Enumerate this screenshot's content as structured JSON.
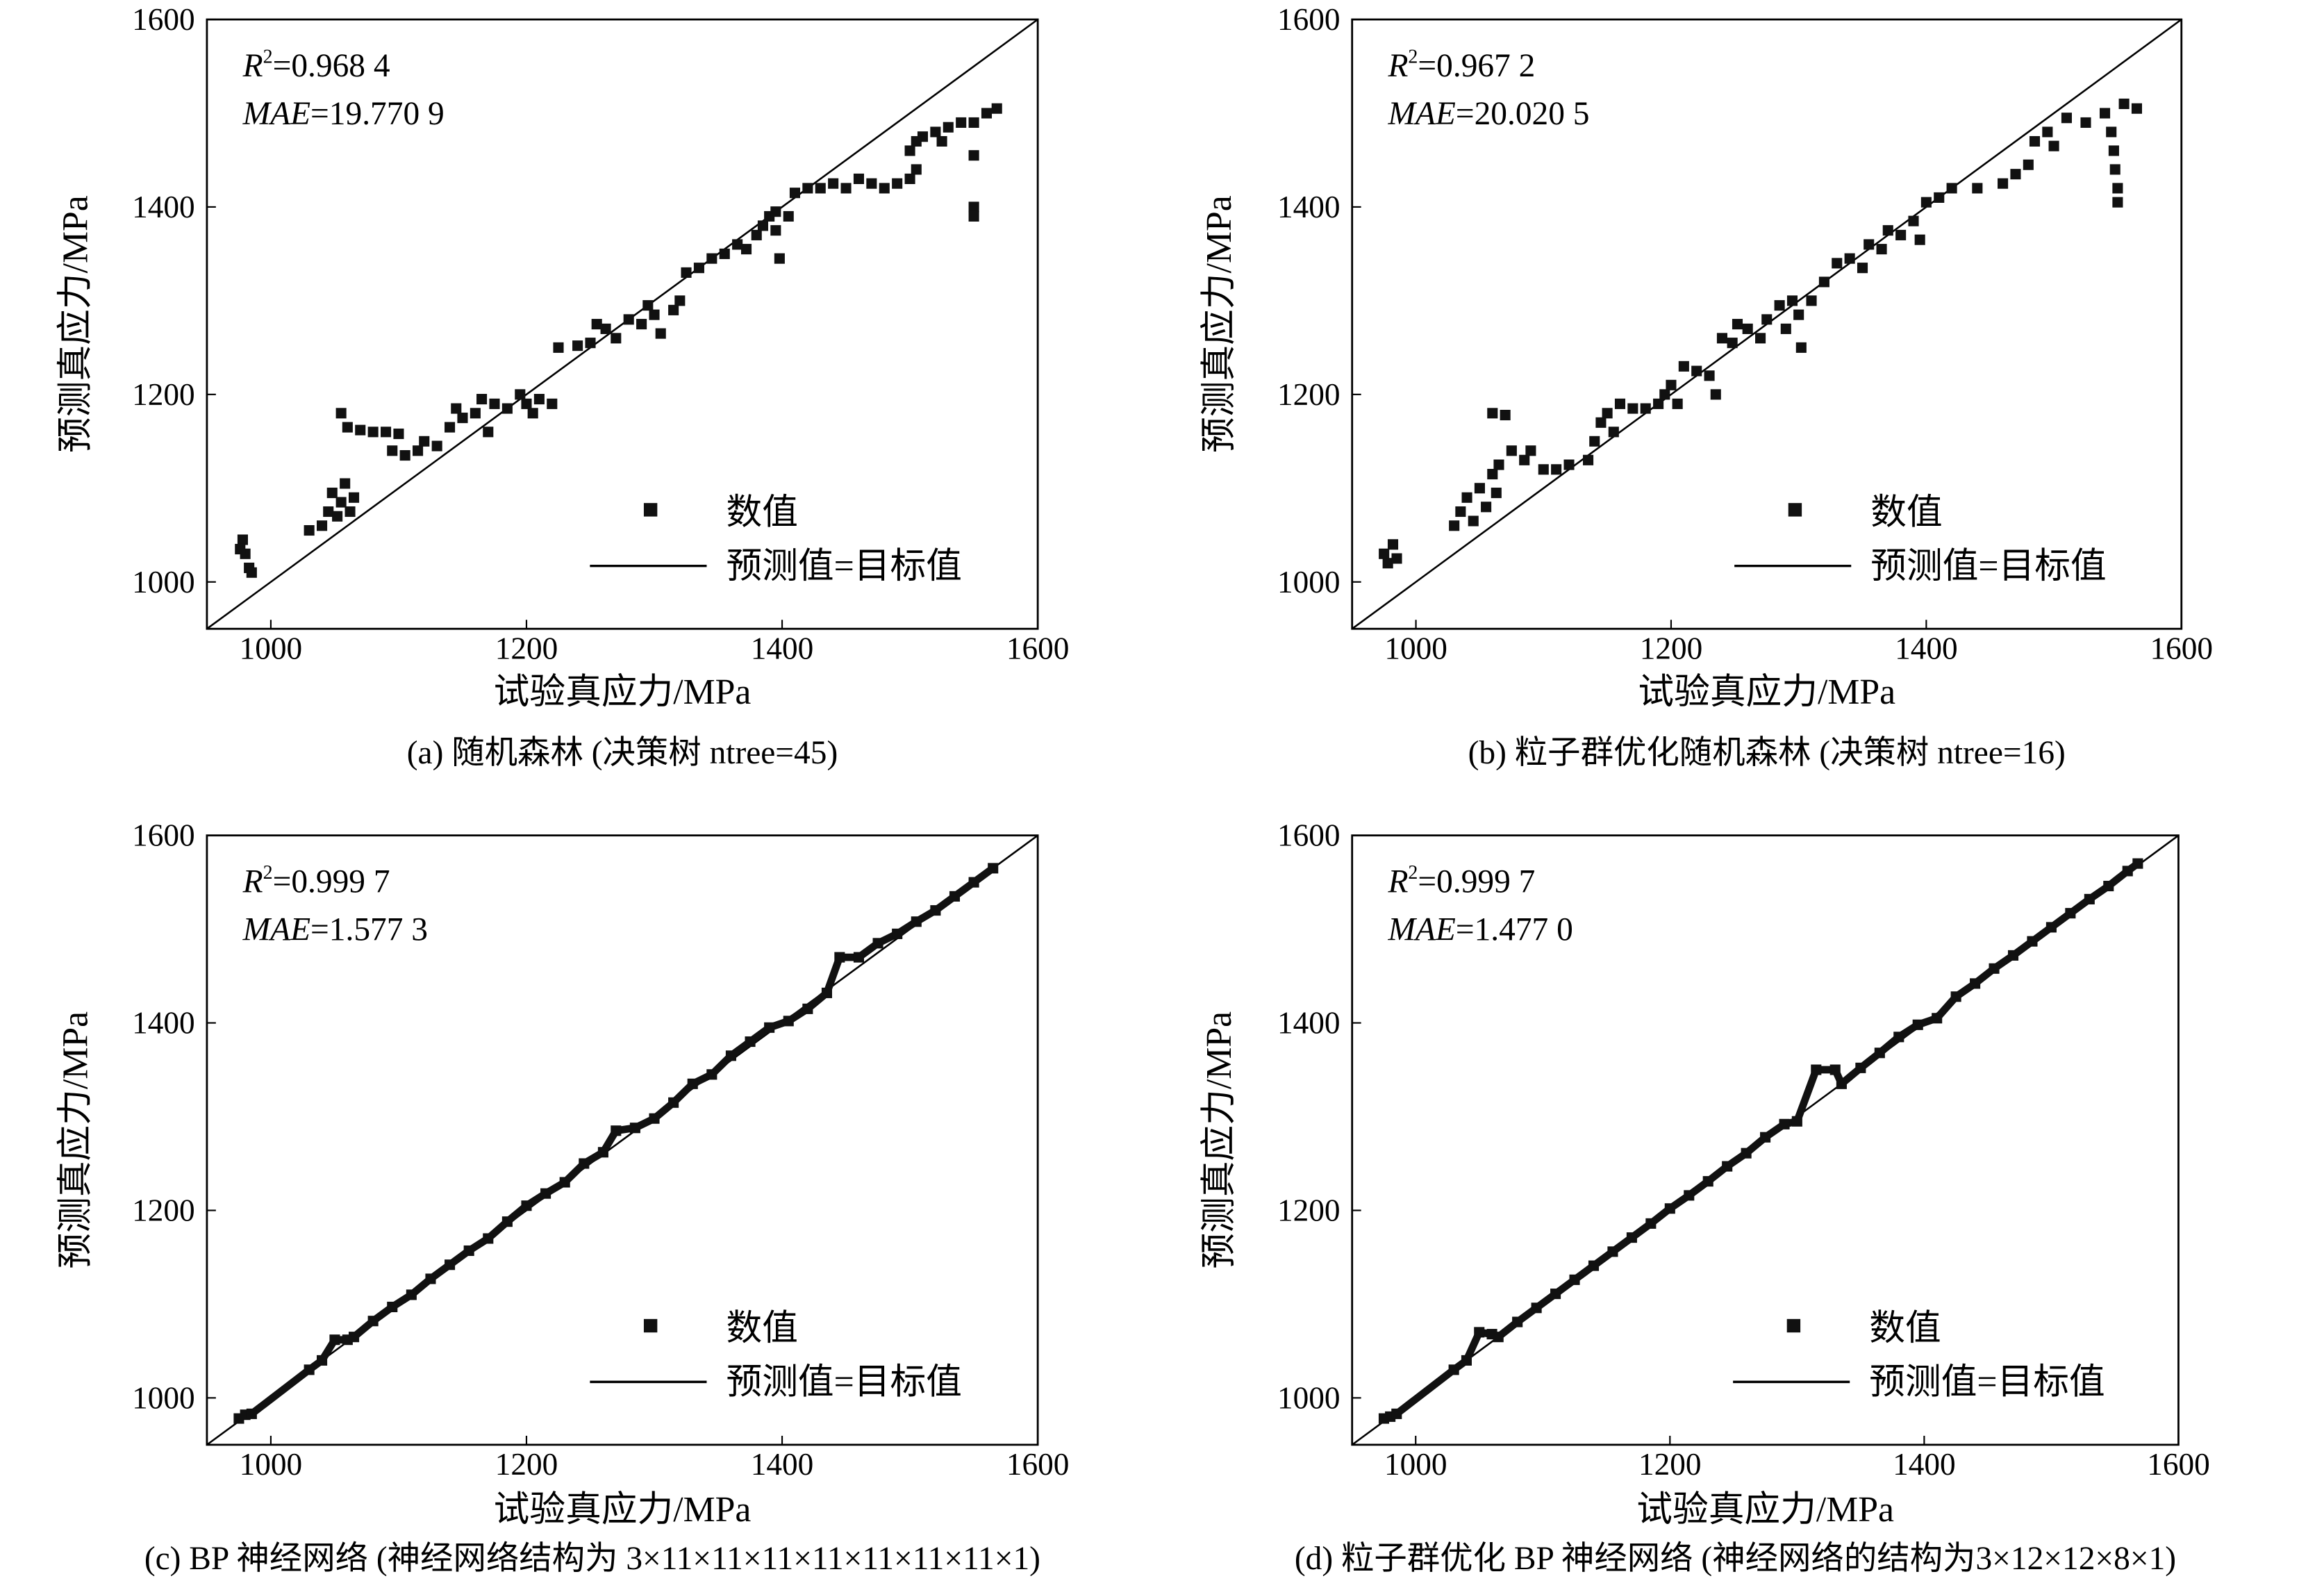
{
  "chart_data": [
    {
      "type": "scatter",
      "caption": "(a) 随机森林 (决策树 ntree=45)",
      "xlabel": "试验真应力/MPa",
      "ylabel": "预测真应力/MPa",
      "xlim": [
        950,
        1600
      ],
      "ylim": [
        950,
        1600
      ],
      "xticks": [
        "1000",
        "1200",
        "1400",
        "1600"
      ],
      "yticks": [
        "1000",
        "1200",
        "1400",
        "1600"
      ],
      "metrics": {
        "r2_label": "R",
        "r2_sup": "2",
        "r2_value": "=0.968 4",
        "mae_label": "MAE",
        "mae_value": "=19.770 9"
      },
      "legend": {
        "placement": "bottom-right",
        "points": "数值",
        "line": "预测值=目标值"
      },
      "reference_line": {
        "slope": 1,
        "intercept": 0
      },
      "points": [
        [
          978,
          1045
        ],
        [
          980,
          1030
        ],
        [
          983,
          1015
        ],
        [
          985,
          1010
        ],
        [
          976,
          1035
        ],
        [
          1030,
          1055
        ],
        [
          1040,
          1060
        ],
        [
          1045,
          1075
        ],
        [
          1048,
          1095
        ],
        [
          1052,
          1070
        ],
        [
          1055,
          1085
        ],
        [
          1058,
          1105
        ],
        [
          1062,
          1075
        ],
        [
          1065,
          1090
        ],
        [
          1055,
          1180
        ],
        [
          1060,
          1165
        ],
        [
          1070,
          1162
        ],
        [
          1080,
          1160
        ],
        [
          1090,
          1160
        ],
        [
          1100,
          1158
        ],
        [
          1095,
          1140
        ],
        [
          1105,
          1135
        ],
        [
          1115,
          1140
        ],
        [
          1120,
          1150
        ],
        [
          1130,
          1145
        ],
        [
          1140,
          1165
        ],
        [
          1145,
          1185
        ],
        [
          1150,
          1175
        ],
        [
          1160,
          1180
        ],
        [
          1165,
          1195
        ],
        [
          1170,
          1160
        ],
        [
          1175,
          1190
        ],
        [
          1185,
          1185
        ],
        [
          1195,
          1200
        ],
        [
          1200,
          1190
        ],
        [
          1205,
          1180
        ],
        [
          1210,
          1195
        ],
        [
          1220,
          1190
        ],
        [
          1225,
          1250
        ],
        [
          1240,
          1252
        ],
        [
          1250,
          1255
        ],
        [
          1255,
          1275
        ],
        [
          1262,
          1270
        ],
        [
          1270,
          1260
        ],
        [
          1280,
          1280
        ],
        [
          1290,
          1275
        ],
        [
          1295,
          1295
        ],
        [
          1300,
          1285
        ],
        [
          1305,
          1265
        ],
        [
          1315,
          1290
        ],
        [
          1320,
          1300
        ],
        [
          1325,
          1330
        ],
        [
          1335,
          1335
        ],
        [
          1345,
          1345
        ],
        [
          1355,
          1350
        ],
        [
          1365,
          1360
        ],
        [
          1372,
          1355
        ],
        [
          1380,
          1370
        ],
        [
          1385,
          1380
        ],
        [
          1390,
          1390
        ],
        [
          1395,
          1375
        ],
        [
          1398,
          1345
        ],
        [
          1395,
          1395
        ],
        [
          1405,
          1390
        ],
        [
          1410,
          1415
        ],
        [
          1420,
          1420
        ],
        [
          1430,
          1420
        ],
        [
          1440,
          1425
        ],
        [
          1450,
          1420
        ],
        [
          1460,
          1430
        ],
        [
          1470,
          1425
        ],
        [
          1480,
          1420
        ],
        [
          1490,
          1425
        ],
        [
          1500,
          1430
        ],
        [
          1505,
          1440
        ],
        [
          1500,
          1460
        ],
        [
          1510,
          1475
        ],
        [
          1520,
          1480
        ],
        [
          1530,
          1485
        ],
        [
          1540,
          1490
        ],
        [
          1550,
          1490
        ],
        [
          1560,
          1500
        ],
        [
          1568,
          1505
        ],
        [
          1550,
          1455
        ],
        [
          1550,
          1400
        ],
        [
          1550,
          1390
        ],
        [
          1505,
          1470
        ],
        [
          1525,
          1470
        ]
      ]
    },
    {
      "type": "scatter",
      "caption": "(b) 粒子群优化随机森林 (决策树 ntree=16)",
      "xlabel": "试验真应力/MPa",
      "ylabel": "预测真应力/MPa",
      "xlim": [
        950,
        1600
      ],
      "ylim": [
        950,
        1600
      ],
      "xticks": [
        "1000",
        "1200",
        "1400",
        "1600"
      ],
      "yticks": [
        "1000",
        "1200",
        "1400",
        "1600"
      ],
      "metrics": {
        "r2_label": "R",
        "r2_sup": "2",
        "r2_value": "=0.967 2",
        "mae_label": "MAE",
        "mae_value": "=20.020 5"
      },
      "legend": {
        "placement": "bottom-right",
        "points": "数值",
        "line": "预测值=目标值"
      },
      "reference_line": {
        "slope": 1,
        "intercept": 0
      },
      "points": [
        [
          975,
          1030
        ],
        [
          978,
          1020
        ],
        [
          982,
          1040
        ],
        [
          985,
          1025
        ],
        [
          1030,
          1060
        ],
        [
          1035,
          1075
        ],
        [
          1040,
          1090
        ],
        [
          1045,
          1065
        ],
        [
          1050,
          1100
        ],
        [
          1055,
          1080
        ],
        [
          1060,
          1115
        ],
        [
          1063,
          1095
        ],
        [
          1065,
          1125
        ],
        [
          1060,
          1180
        ],
        [
          1070,
          1178
        ],
        [
          1075,
          1140
        ],
        [
          1085,
          1130
        ],
        [
          1090,
          1140
        ],
        [
          1100,
          1120
        ],
        [
          1110,
          1120
        ],
        [
          1120,
          1125
        ],
        [
          1135,
          1130
        ],
        [
          1140,
          1150
        ],
        [
          1145,
          1170
        ],
        [
          1150,
          1180
        ],
        [
          1155,
          1160
        ],
        [
          1160,
          1190
        ],
        [
          1170,
          1185
        ],
        [
          1180,
          1185
        ],
        [
          1190,
          1190
        ],
        [
          1195,
          1200
        ],
        [
          1200,
          1210
        ],
        [
          1205,
          1190
        ],
        [
          1210,
          1230
        ],
        [
          1220,
          1225
        ],
        [
          1230,
          1220
        ],
        [
          1235,
          1200
        ],
        [
          1240,
          1260
        ],
        [
          1248,
          1255
        ],
        [
          1252,
          1275
        ],
        [
          1260,
          1270
        ],
        [
          1270,
          1260
        ],
        [
          1275,
          1280
        ],
        [
          1285,
          1295
        ],
        [
          1290,
          1270
        ],
        [
          1295,
          1300
        ],
        [
          1300,
          1285
        ],
        [
          1302,
          1250
        ],
        [
          1310,
          1300
        ],
        [
          1320,
          1320
        ],
        [
          1330,
          1340
        ],
        [
          1340,
          1345
        ],
        [
          1350,
          1335
        ],
        [
          1355,
          1360
        ],
        [
          1365,
          1355
        ],
        [
          1370,
          1375
        ],
        [
          1380,
          1370
        ],
        [
          1390,
          1385
        ],
        [
          1395,
          1365
        ],
        [
          1400,
          1405
        ],
        [
          1410,
          1410
        ],
        [
          1420,
          1420
        ],
        [
          1440,
          1420
        ],
        [
          1460,
          1425
        ],
        [
          1470,
          1435
        ],
        [
          1480,
          1445
        ],
        [
          1485,
          1470
        ],
        [
          1495,
          1480
        ],
        [
          1500,
          1465
        ],
        [
          1510,
          1495
        ],
        [
          1525,
          1490
        ],
        [
          1540,
          1500
        ],
        [
          1555,
          1510
        ],
        [
          1565,
          1505
        ],
        [
          1545,
          1480
        ],
        [
          1547,
          1460
        ],
        [
          1548,
          1440
        ],
        [
          1550,
          1420
        ],
        [
          1550,
          1405
        ]
      ]
    },
    {
      "type": "scatter",
      "caption": "(c) BP 神经网络 (神经网络结构为 3×11×11×11×11×11×11×11×1)",
      "xlabel": "试验真应力/MPa",
      "ylabel": "预测真应力/MPa",
      "xlim": [
        950,
        1600
      ],
      "ylim": [
        950,
        1600
      ],
      "xticks": [
        "1000",
        "1200",
        "1400",
        "1600"
      ],
      "yticks": [
        "1000",
        "1200",
        "1400",
        "1600"
      ],
      "metrics": {
        "r2_label": "R",
        "r2_sup": "2",
        "r2_value": "=0.999 7",
        "mae_label": "MAE",
        "mae_value": "=1.577 3"
      },
      "legend": {
        "placement": "bottom-right",
        "points": "数值",
        "line": "预测值=目标值"
      },
      "reference_line": {
        "slope": 1,
        "intercept": 0
      },
      "points": [
        [
          975,
          978
        ],
        [
          980,
          982
        ],
        [
          985,
          983
        ],
        [
          1030,
          1030
        ],
        [
          1040,
          1040
        ],
        [
          1050,
          1062
        ],
        [
          1060,
          1062
        ],
        [
          1065,
          1065
        ],
        [
          1080,
          1082
        ],
        [
          1095,
          1097
        ],
        [
          1110,
          1110
        ],
        [
          1125,
          1127
        ],
        [
          1140,
          1142
        ],
        [
          1155,
          1157
        ],
        [
          1170,
          1170
        ],
        [
          1185,
          1188
        ],
        [
          1200,
          1205
        ],
        [
          1215,
          1218
        ],
        [
          1230,
          1230
        ],
        [
          1245,
          1250
        ],
        [
          1260,
          1262
        ],
        [
          1270,
          1285
        ],
        [
          1285,
          1288
        ],
        [
          1300,
          1298
        ],
        [
          1315,
          1315
        ],
        [
          1330,
          1335
        ],
        [
          1345,
          1345
        ],
        [
          1360,
          1365
        ],
        [
          1375,
          1380
        ],
        [
          1390,
          1395
        ],
        [
          1405,
          1402
        ],
        [
          1420,
          1415
        ],
        [
          1435,
          1432
        ],
        [
          1445,
          1470
        ],
        [
          1460,
          1470
        ],
        [
          1475,
          1485
        ],
        [
          1490,
          1495
        ],
        [
          1505,
          1508
        ],
        [
          1520,
          1520
        ],
        [
          1535,
          1535
        ],
        [
          1550,
          1550
        ],
        [
          1565,
          1565
        ]
      ]
    },
    {
      "type": "scatter",
      "caption": "(d) 粒子群优化 BP 神经网络 (神经网络的结构为3×12×12×8×1)",
      "xlabel": "试验真应力/MPa",
      "ylabel": "预测真应力/MPa",
      "xlim": [
        950,
        1600
      ],
      "ylim": [
        950,
        1600
      ],
      "xticks": [
        "1000",
        "1200",
        "1400",
        "1600"
      ],
      "yticks": [
        "1000",
        "1200",
        "1400",
        "1600"
      ],
      "metrics": {
        "r2_label": "R",
        "r2_sup": "2",
        "r2_value": "=0.999 7",
        "mae_label": "MAE",
        "mae_value": "=1.477 0"
      },
      "legend": {
        "placement": "bottom-right",
        "points": "数值",
        "line": "预测值=目标值"
      },
      "reference_line": {
        "slope": 1,
        "intercept": 0
      },
      "points": [
        [
          975,
          978
        ],
        [
          980,
          980
        ],
        [
          985,
          983
        ],
        [
          1030,
          1030
        ],
        [
          1040,
          1040
        ],
        [
          1050,
          1070
        ],
        [
          1060,
          1068
        ],
        [
          1065,
          1065
        ],
        [
          1080,
          1081
        ],
        [
          1095,
          1096
        ],
        [
          1110,
          1111
        ],
        [
          1125,
          1126
        ],
        [
          1140,
          1141
        ],
        [
          1155,
          1156
        ],
        [
          1170,
          1171
        ],
        [
          1185,
          1186
        ],
        [
          1200,
          1202
        ],
        [
          1215,
          1216
        ],
        [
          1230,
          1231
        ],
        [
          1245,
          1247
        ],
        [
          1260,
          1261
        ],
        [
          1275,
          1278
        ],
        [
          1290,
          1292
        ],
        [
          1300,
          1295
        ],
        [
          1315,
          1350
        ],
        [
          1330,
          1350
        ],
        [
          1335,
          1335
        ],
        [
          1350,
          1352
        ],
        [
          1365,
          1368
        ],
        [
          1380,
          1385
        ],
        [
          1395,
          1398
        ],
        [
          1410,
          1405
        ],
        [
          1425,
          1428
        ],
        [
          1440,
          1442
        ],
        [
          1455,
          1458
        ],
        [
          1470,
          1472
        ],
        [
          1485,
          1487
        ],
        [
          1500,
          1502
        ],
        [
          1515,
          1517
        ],
        [
          1530,
          1532
        ],
        [
          1545,
          1546
        ],
        [
          1560,
          1562
        ],
        [
          1568,
          1570
        ]
      ]
    }
  ]
}
